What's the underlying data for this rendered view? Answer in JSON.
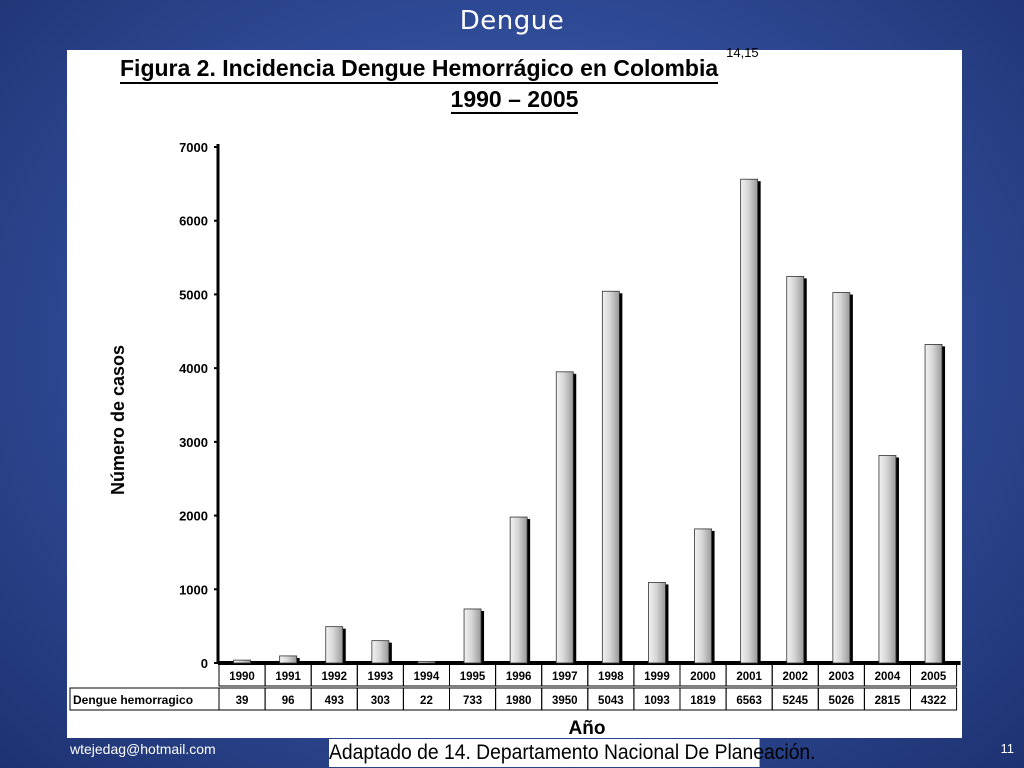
{
  "slide": {
    "title": "Dengue",
    "footer_email": "wtejedag@hotmail.com",
    "source_note": "Adaptado de 14. Departamento Nacional De Planeación.",
    "page_number": "11"
  },
  "colors": {
    "background": "#2f4a95",
    "bar_fill": "#c8c8c8",
    "bar_shadow": "#000000"
  },
  "chart_data": {
    "type": "bar",
    "title": "Figura 2. Incidencia Dengue Hemorrágico en Colombia",
    "title_superscript": "14,15",
    "subtitle": "1990 – 2005",
    "xlabel": "Año",
    "ylabel": "Número de casos",
    "ylim": [
      0,
      7000
    ],
    "yticks": [
      0,
      1000,
      2000,
      3000,
      4000,
      5000,
      6000,
      7000
    ],
    "categories": [
      "1990",
      "1991",
      "1992",
      "1993",
      "1994",
      "1995",
      "1996",
      "1997",
      "1998",
      "1999",
      "2000",
      "2001",
      "2002",
      "2003",
      "2004",
      "2005"
    ],
    "series": [
      {
        "name": "Dengue hemorragico",
        "values": [
          39,
          96,
          493,
          303,
          22,
          733,
          1980,
          3950,
          5043,
          1093,
          1819,
          6563,
          5245,
          5026,
          2815,
          4322
        ]
      }
    ],
    "grid": false,
    "data_table": true
  }
}
